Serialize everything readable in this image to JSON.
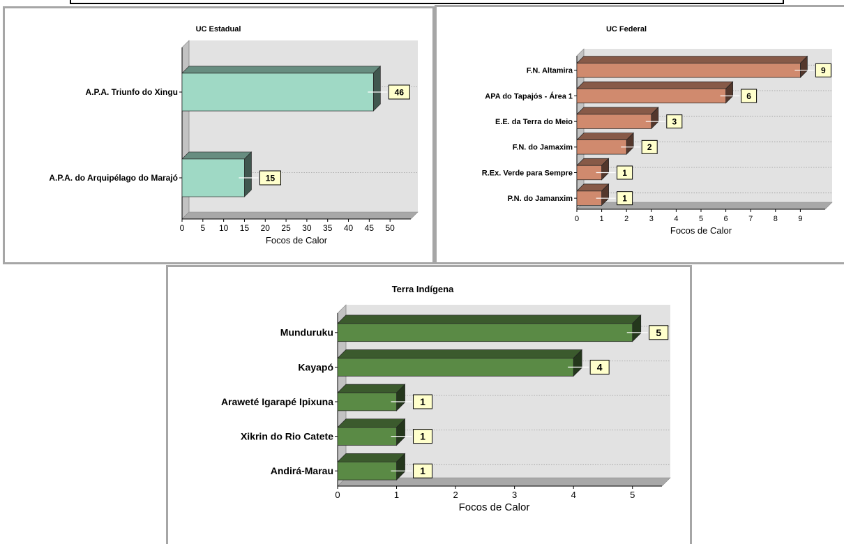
{
  "chart_data": [
    {
      "type": "bar",
      "orientation": "horizontal",
      "title": "UC Estadual",
      "xlabel": "Focos de Calor",
      "categories": [
        "A.P.A. Triunfo do Xingu",
        "A.P.A. do Arquipélago do Marajó"
      ],
      "values": [
        46,
        15
      ],
      "xlim": [
        0,
        55
      ],
      "ticks": [
        0,
        5,
        10,
        15,
        20,
        25,
        30,
        35,
        40,
        45,
        50
      ],
      "color": "#9fd9c5",
      "grid": "dotted horizontal",
      "style": "3d"
    },
    {
      "type": "bar",
      "orientation": "horizontal",
      "title": "UC Federal",
      "xlabel": "Focos de Calor",
      "categories": [
        "F.N. Altamira",
        "APA do Tapajós - Área 1",
        "E.E. da Terra do Meio",
        "F.N. do Jamaxim",
        "R.Ex. Verde para Sempre",
        "P.N. do Jamanxim"
      ],
      "values": [
        9,
        6,
        3,
        2,
        1,
        1
      ],
      "xlim": [
        0,
        10
      ],
      "ticks": [
        0,
        1,
        2,
        3,
        4,
        5,
        6,
        7,
        8,
        9
      ],
      "color": "#d08a6e",
      "grid": "dotted horizontal",
      "style": "3d"
    },
    {
      "type": "bar",
      "orientation": "horizontal",
      "title": "Terra Indígena",
      "xlabel": "Focos de Calor",
      "categories": [
        "Munduruku",
        "Kayapó",
        "Araweté Igarapé Ipixuna",
        "Xikrin do Rio Catete",
        "Andirá-Marau"
      ],
      "values": [
        5,
        4,
        1,
        1,
        1
      ],
      "xlim": [
        0,
        5.5
      ],
      "ticks": [
        0,
        1,
        2,
        3,
        4,
        5
      ],
      "color": "#5a8a45",
      "grid": "dotted horizontal",
      "style": "3d"
    }
  ]
}
